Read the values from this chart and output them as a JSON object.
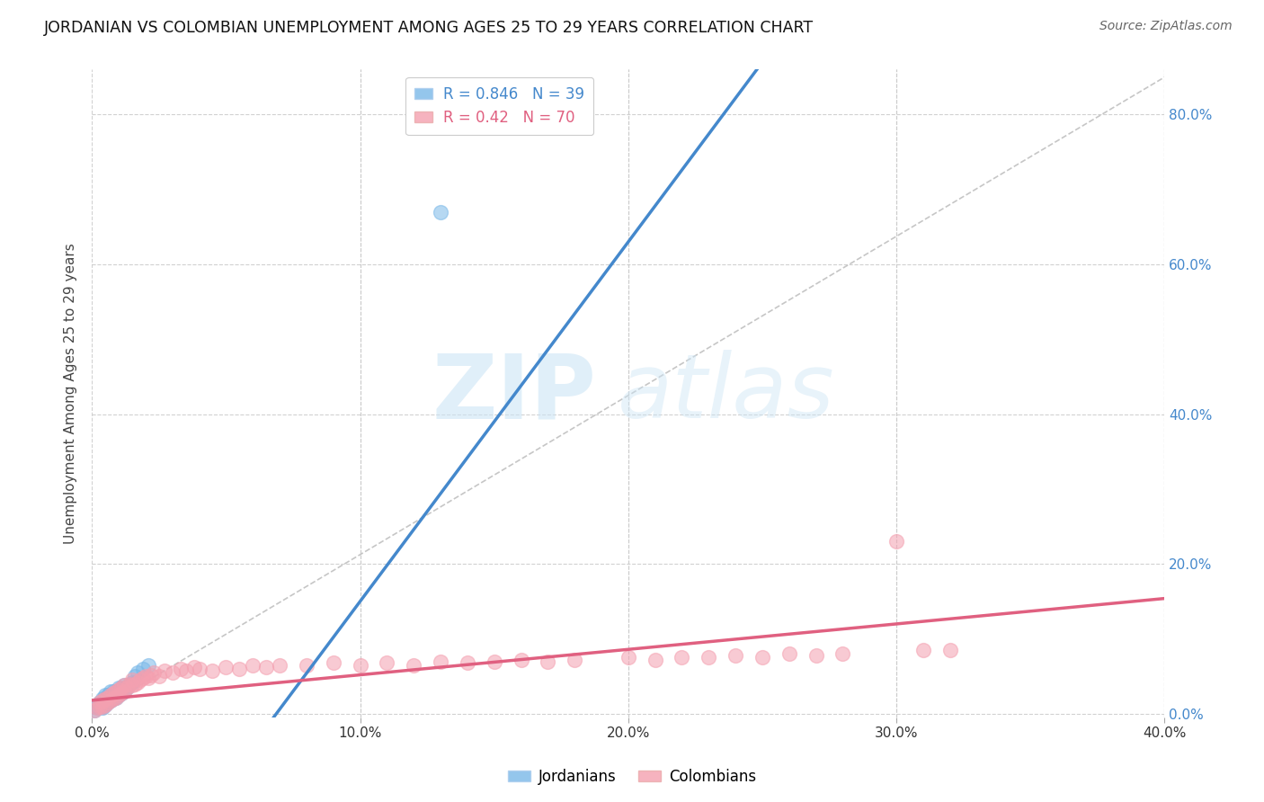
{
  "title": "JORDANIAN VS COLOMBIAN UNEMPLOYMENT AMONG AGES 25 TO 29 YEARS CORRELATION CHART",
  "source": "Source: ZipAtlas.com",
  "xlim": [
    0.0,
    0.4
  ],
  "ylim": [
    -0.005,
    0.86
  ],
  "jordan_R": 0.846,
  "jordan_N": 39,
  "colombia_R": 0.42,
  "colombia_N": 70,
  "jordan_color": "#7ab8e8",
  "colombia_color": "#f4a0b0",
  "jordan_line_color": "#4488cc",
  "colombia_line_color": "#e06080",
  "diag_line_color": "#c0c0c0",
  "background": "#ffffff",
  "grid_color": "#cccccc",
  "ytick_color": "#4488cc",
  "jordan_scatter_x": [
    0.001,
    0.002,
    0.002,
    0.003,
    0.003,
    0.003,
    0.004,
    0.004,
    0.004,
    0.004,
    0.005,
    0.005,
    0.005,
    0.006,
    0.006,
    0.006,
    0.007,
    0.007,
    0.007,
    0.008,
    0.008,
    0.008,
    0.009,
    0.009,
    0.01,
    0.01,
    0.01,
    0.011,
    0.011,
    0.012,
    0.012,
    0.013,
    0.014,
    0.015,
    0.016,
    0.017,
    0.019,
    0.13,
    0.021
  ],
  "jordan_scatter_y": [
    0.005,
    0.008,
    0.01,
    0.01,
    0.015,
    0.012,
    0.01,
    0.015,
    0.02,
    0.008,
    0.012,
    0.018,
    0.025,
    0.015,
    0.02,
    0.025,
    0.018,
    0.022,
    0.03,
    0.02,
    0.025,
    0.03,
    0.022,
    0.028,
    0.025,
    0.035,
    0.03,
    0.028,
    0.035,
    0.03,
    0.038,
    0.035,
    0.04,
    0.042,
    0.05,
    0.055,
    0.06,
    0.67,
    0.065
  ],
  "colombia_scatter_x": [
    0.001,
    0.002,
    0.003,
    0.003,
    0.004,
    0.004,
    0.005,
    0.005,
    0.006,
    0.006,
    0.007,
    0.007,
    0.008,
    0.008,
    0.009,
    0.009,
    0.01,
    0.01,
    0.011,
    0.011,
    0.012,
    0.012,
    0.013,
    0.014,
    0.015,
    0.015,
    0.016,
    0.017,
    0.018,
    0.019,
    0.02,
    0.021,
    0.022,
    0.023,
    0.025,
    0.027,
    0.03,
    0.033,
    0.035,
    0.038,
    0.04,
    0.045,
    0.05,
    0.055,
    0.06,
    0.065,
    0.07,
    0.08,
    0.09,
    0.1,
    0.11,
    0.12,
    0.13,
    0.14,
    0.15,
    0.16,
    0.17,
    0.18,
    0.2,
    0.21,
    0.22,
    0.23,
    0.24,
    0.25,
    0.26,
    0.27,
    0.28,
    0.3,
    0.31,
    0.32
  ],
  "colombia_scatter_y": [
    0.005,
    0.008,
    0.01,
    0.015,
    0.01,
    0.018,
    0.012,
    0.02,
    0.015,
    0.022,
    0.018,
    0.025,
    0.02,
    0.028,
    0.022,
    0.03,
    0.025,
    0.032,
    0.028,
    0.035,
    0.03,
    0.038,
    0.035,
    0.04,
    0.038,
    0.045,
    0.04,
    0.042,
    0.045,
    0.048,
    0.05,
    0.048,
    0.052,
    0.055,
    0.05,
    0.058,
    0.055,
    0.06,
    0.058,
    0.062,
    0.06,
    0.058,
    0.062,
    0.06,
    0.065,
    0.062,
    0.065,
    0.065,
    0.068,
    0.065,
    0.068,
    0.065,
    0.07,
    0.068,
    0.07,
    0.072,
    0.07,
    0.072,
    0.075,
    0.072,
    0.075,
    0.075,
    0.078,
    0.075,
    0.08,
    0.078,
    0.08,
    0.23,
    0.085,
    0.085
  ]
}
